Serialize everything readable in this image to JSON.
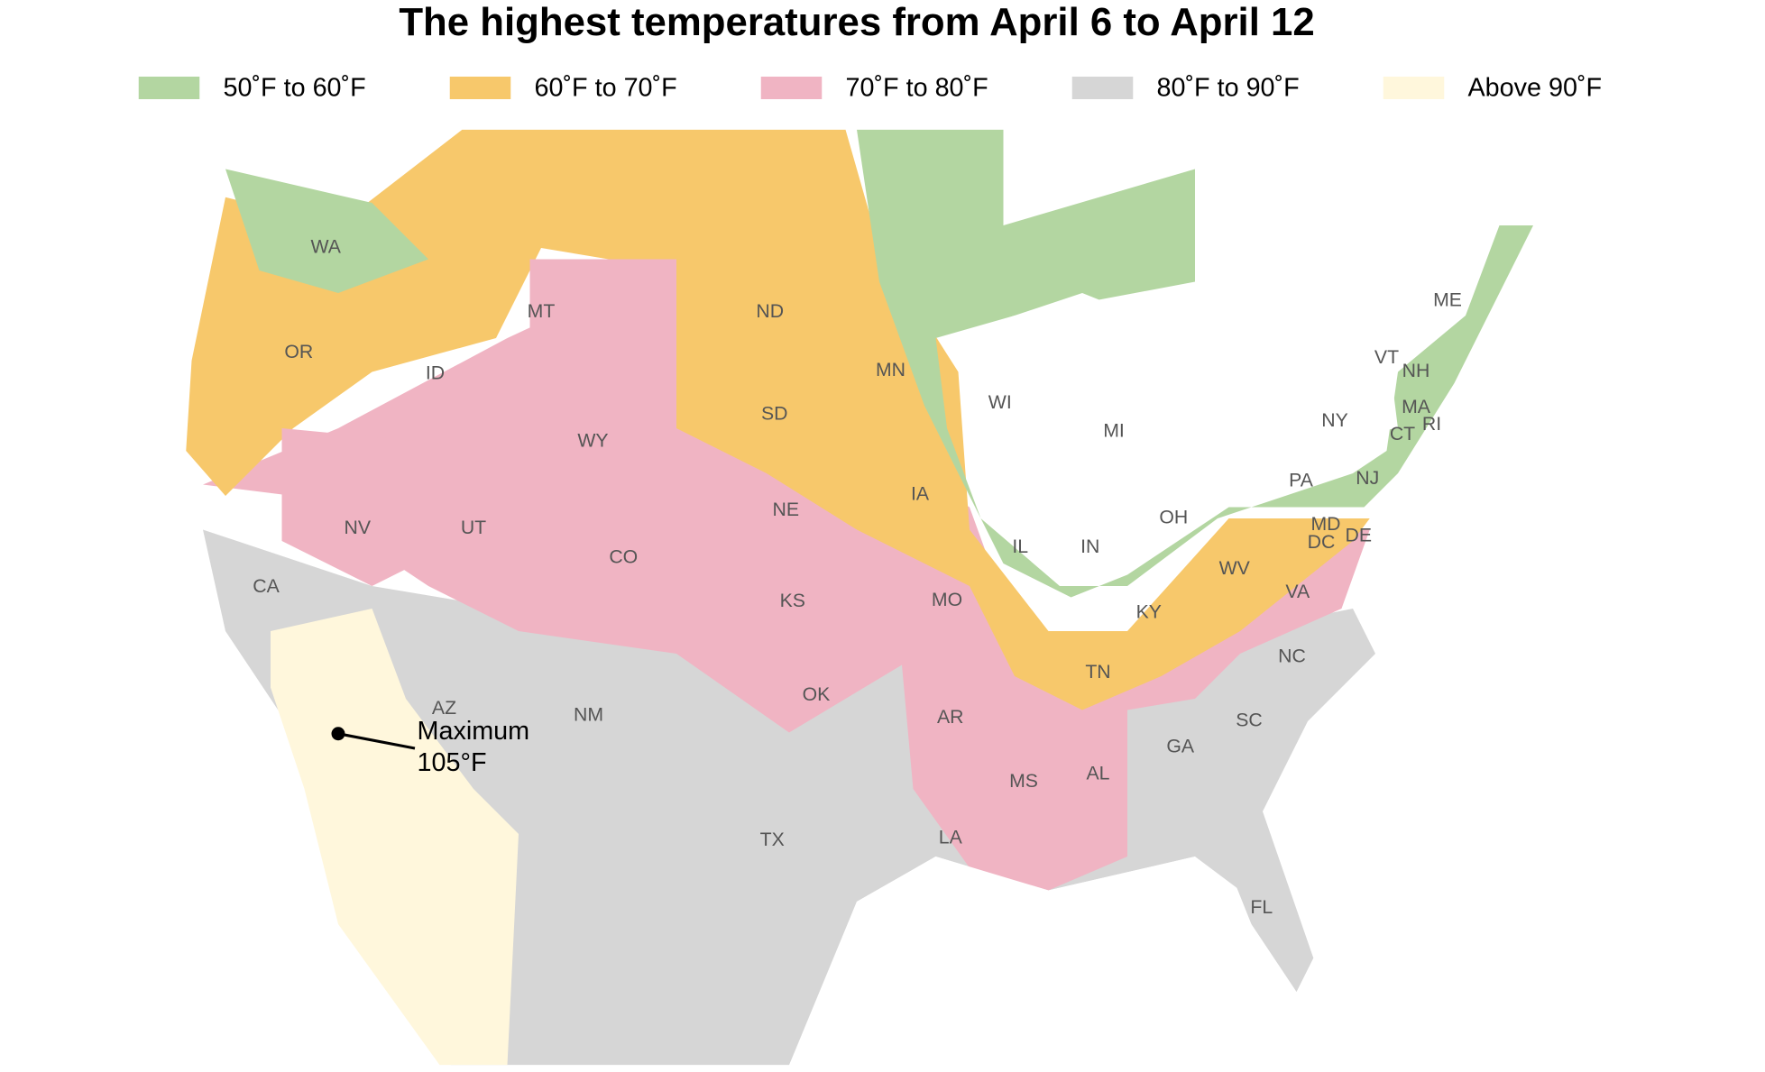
{
  "title": "The highest temperatures from April 6 to April 12",
  "legend": [
    {
      "label": "50˚F to 60˚F",
      "color": "#b3d6a1"
    },
    {
      "label": "60˚F to 70˚F",
      "color": "#f7c86b"
    },
    {
      "label": "70˚F to 80˚F",
      "color": "#f0b4c3"
    },
    {
      "label": "80˚F to 90˚F",
      "color": "#d6d6d6"
    },
    {
      "label": "Above 90˚F",
      "color": "#fff7dc"
    }
  ],
  "states": [
    "WA",
    "OR",
    "CA",
    "NV",
    "ID",
    "MT",
    "WY",
    "UT",
    "AZ",
    "CO",
    "NM",
    "ND",
    "SD",
    "NE",
    "KS",
    "OK",
    "TX",
    "MN",
    "IA",
    "MO",
    "AR",
    "LA",
    "WI",
    "IL",
    "MI",
    "IN",
    "OH",
    "KY",
    "TN",
    "MS",
    "AL",
    "GA",
    "FL",
    "SC",
    "NC",
    "VA",
    "WV",
    "PA",
    "NY",
    "VT",
    "NH",
    "ME",
    "MA",
    "CT",
    "RI",
    "NJ",
    "DE",
    "MD",
    "DC"
  ],
  "annotation": [
    "Maximum",
    "105°F"
  ]
}
